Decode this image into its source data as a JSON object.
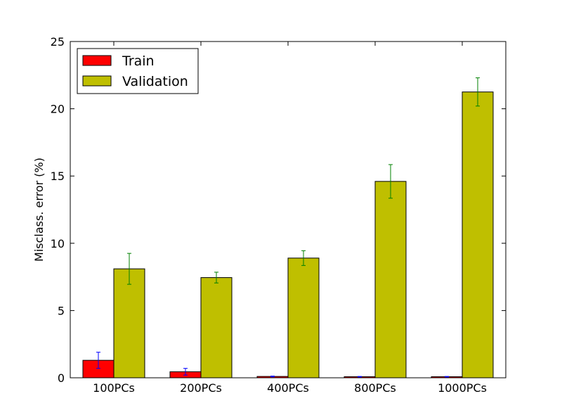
{
  "chart_data": {
    "type": "bar",
    "title": "",
    "xlabel": "",
    "ylabel": "Misclass. error (%)",
    "ylim": [
      0,
      25
    ],
    "yticks": [
      0,
      5,
      10,
      15,
      20,
      25
    ],
    "grid": false,
    "legend_position": "top-left",
    "categories": [
      "100PCs",
      "200PCs",
      "400PCs",
      "800PCs",
      "1000PCs"
    ],
    "series": [
      {
        "name": "Train",
        "color": "#ff0000",
        "error_color": "#0000ff",
        "values": [
          1.3,
          0.45,
          0.1,
          0.08,
          0.08
        ],
        "errors": [
          0.6,
          0.25,
          0.03,
          0.02,
          0.02
        ]
      },
      {
        "name": "Validation",
        "color": "#bfbf00",
        "error_color": "#008000",
        "values": [
          8.1,
          7.45,
          8.9,
          14.6,
          21.25
        ],
        "errors": [
          1.15,
          0.4,
          0.55,
          1.25,
          1.05
        ]
      }
    ]
  }
}
